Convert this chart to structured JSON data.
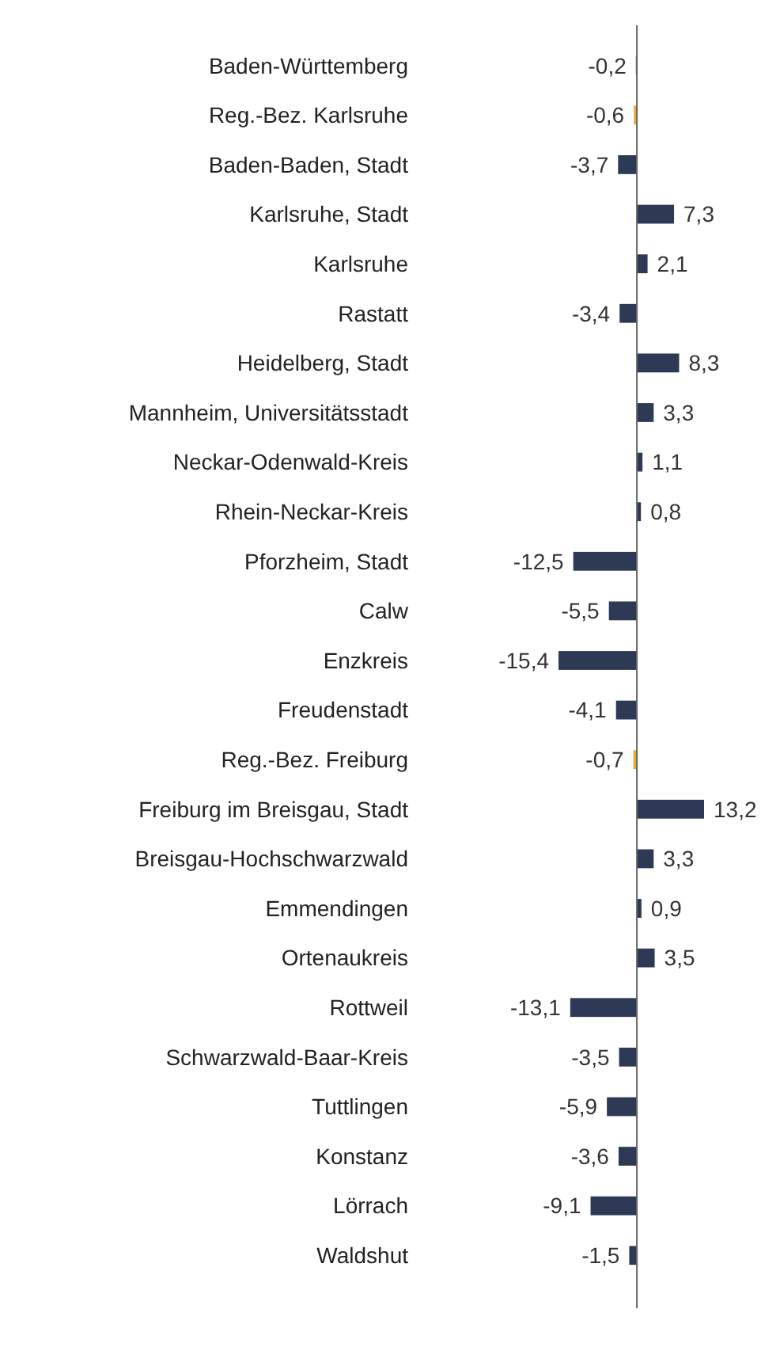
{
  "chart_data": {
    "type": "bar",
    "orientation": "horizontal",
    "categories": [
      "Baden-Württemberg",
      "Reg.-Bez. Karlsruhe",
      "Baden-Baden, Stadt",
      "Karlsruhe, Stadt",
      "Karlsruhe",
      "Rastatt",
      "Heidelberg, Stadt",
      "Mannheim, Universitätsstadt",
      "Neckar-Odenwald-Kreis",
      "Rhein-Neckar-Kreis",
      "Pforzheim, Stadt",
      "Calw",
      "Enzkreis",
      "Freudenstadt",
      "Reg.-Bez. Freiburg",
      "Freiburg im Breisgau, Stadt",
      "Breisgau-Hochschwarzwald",
      "Emmendingen",
      "Ortenaukreis",
      "Rottweil",
      "Schwarzwald-Baar-Kreis",
      "Tuttlingen",
      "Konstanz",
      "Lörrach",
      "Waldshut"
    ],
    "values": [
      -0.2,
      -0.6,
      -3.7,
      7.3,
      2.1,
      -3.4,
      8.3,
      3.3,
      1.1,
      0.8,
      -12.5,
      -5.5,
      -15.4,
      -4.1,
      -0.7,
      13.2,
      3.3,
      0.9,
      3.5,
      -13.1,
      -3.5,
      -5.9,
      -3.6,
      -9.1,
      -1.5
    ],
    "value_labels": [
      "-0,2",
      "-0,6",
      "-3,7",
      "7,3",
      "2,1",
      "-3,4",
      "8,3",
      "3,3",
      "1,1",
      "0,8",
      "-12,5",
      "-5,5",
      "-15,4",
      "-4,1",
      "-0,7",
      "13,2",
      "3,3",
      "0,9",
      "3,5",
      "-13,1",
      "-3,5",
      "-5,9",
      "-3,6",
      "-9,1",
      "-1,5"
    ],
    "colors": [
      "#8b3a10",
      "#f0a830",
      "#2e3a55",
      "#2e3a55",
      "#2e3a55",
      "#2e3a55",
      "#2e3a55",
      "#2e3a55",
      "#2e3a55",
      "#2e3a55",
      "#2e3a55",
      "#2e3a55",
      "#2e3a55",
      "#2e3a55",
      "#f0a830",
      "#2e3a55",
      "#2e3a55",
      "#2e3a55",
      "#2e3a55",
      "#2e3a55",
      "#2e3a55",
      "#2e3a55",
      "#2e3a55",
      "#2e3a55",
      "#2e3a55"
    ]
  }
}
